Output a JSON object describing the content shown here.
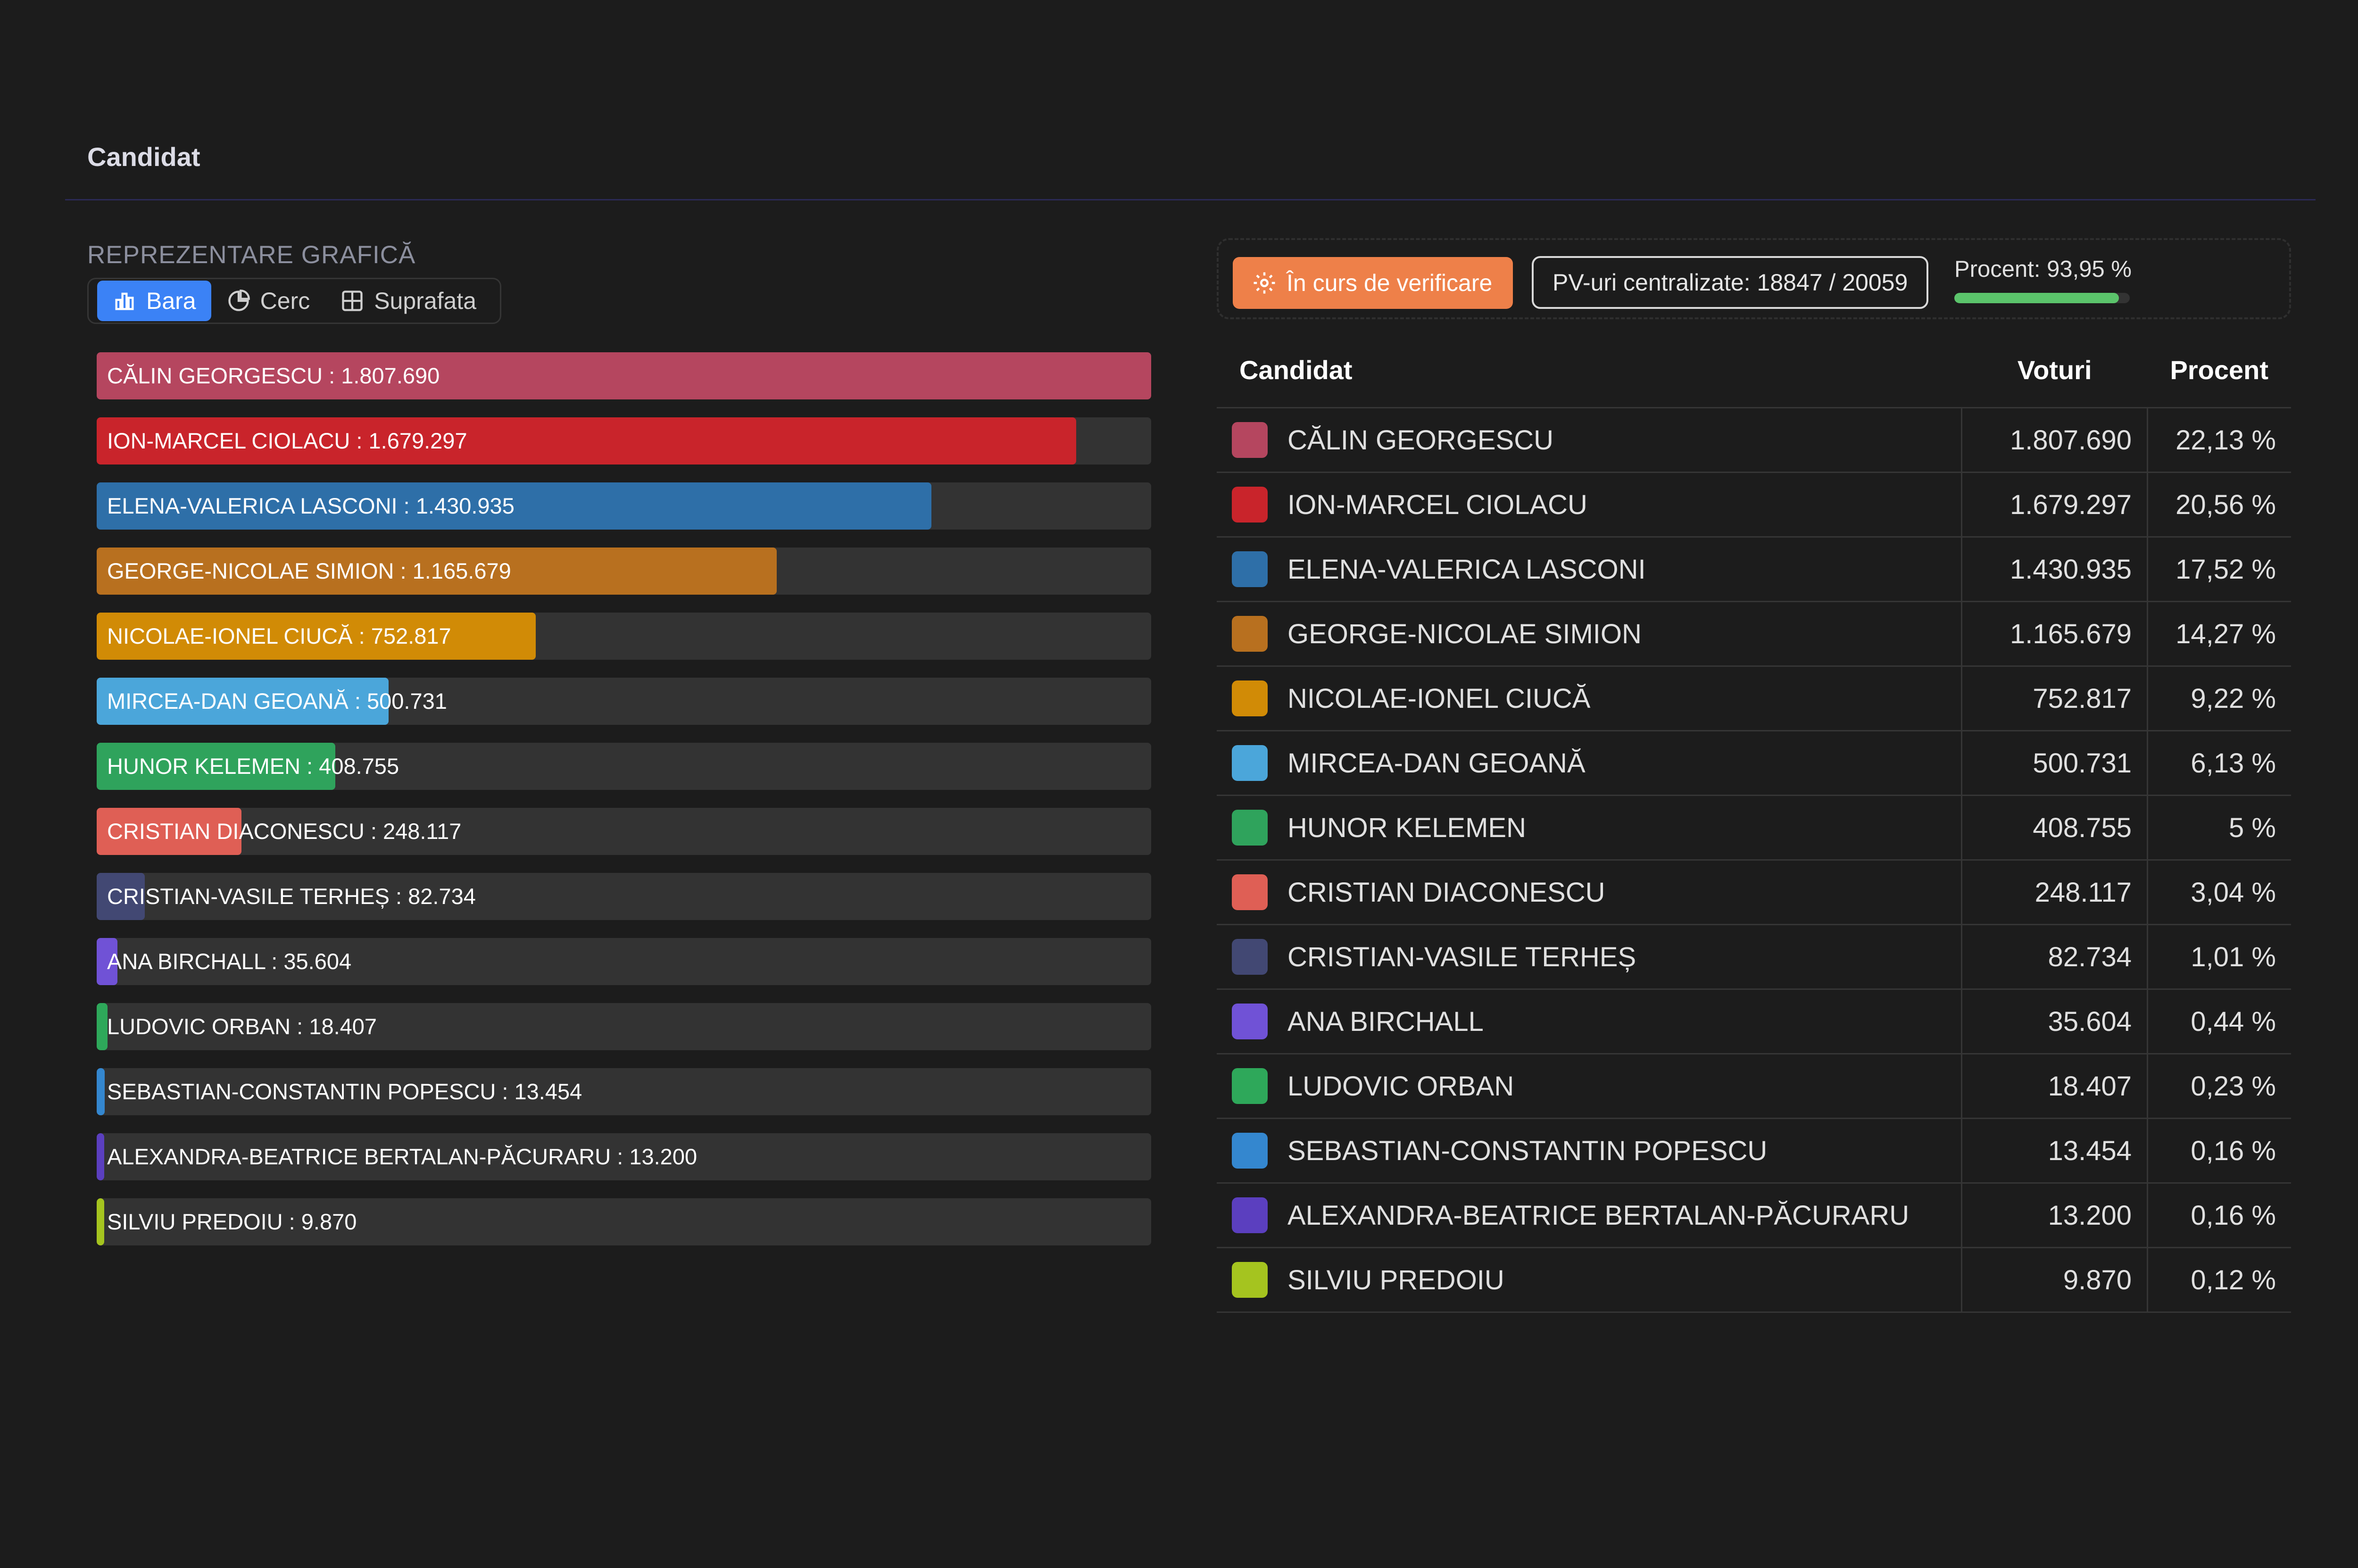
{
  "header": {
    "title": "Candidat"
  },
  "visual": {
    "label": "REPREZENTARE GRAFICĂ",
    "tabs": [
      {
        "label": "Bara",
        "icon": "bar-chart-icon",
        "active": true
      },
      {
        "label": "Cerc",
        "icon": "pie-chart-icon",
        "active": false
      },
      {
        "label": "Suprafata",
        "icon": "grid-area-icon",
        "active": false
      }
    ]
  },
  "status": {
    "verify_label": "În curs de verificare",
    "verify_color": "#ee8049",
    "pv_label": "PV-uri centralizate: 18847 / 20059",
    "percent_label": "Procent: 93,95 %",
    "percent_value": 93.95
  },
  "table": {
    "headers": {
      "candidate": "Candidat",
      "votes": "Voturi",
      "percent": "Procent"
    }
  },
  "chart_data": {
    "type": "bar",
    "orientation": "horizontal",
    "max_value": 1807690,
    "categories": [
      "CĂLIN GEORGESCU",
      "ION-MARCEL CIOLACU",
      "ELENA-VALERICA LASCONI",
      "GEORGE-NICOLAE SIMION",
      "NICOLAE-IONEL CIUCĂ",
      "MIRCEA-DAN GEOANĂ",
      "HUNOR KELEMEN",
      "CRISTIAN DIACONESCU",
      "CRISTIAN-VASILE TERHEȘ",
      "ANA BIRCHALL",
      "LUDOVIC ORBAN",
      "SEBASTIAN-CONSTANTIN POPESCU",
      "ALEXANDRA-BEATRICE BERTALAN-PĂCURARU",
      "SILVIU PREDOIU"
    ],
    "values": [
      1807690,
      1679297,
      1430935,
      1165679,
      752817,
      500731,
      408755,
      248117,
      82734,
      35604,
      18407,
      13454,
      13200,
      9870
    ],
    "value_labels": [
      "1.807.690",
      "1.679.297",
      "1.430.935",
      "1.165.679",
      "752.817",
      "500.731",
      "408.755",
      "248.117",
      "82.734",
      "35.604",
      "18.407",
      "13.454",
      "13.200",
      "9.870"
    ],
    "percent_labels": [
      "22,13 %",
      "20,56 %",
      "17,52 %",
      "14,27 %",
      "9,22 %",
      "6,13 %",
      "5 %",
      "3,04 %",
      "1,01 %",
      "0,44 %",
      "0,23 %",
      "0,16 %",
      "0,16 %",
      "0,12 %"
    ],
    "colors": [
      "#b5465f",
      "#c9242b",
      "#2e6fa8",
      "#b8701f",
      "#d18b06",
      "#4ba6da",
      "#2fa35c",
      "#df5f55",
      "#424873",
      "#7052d6",
      "#2ea85a",
      "#3487cf",
      "#5b3fbf",
      "#a5c41f"
    ]
  }
}
